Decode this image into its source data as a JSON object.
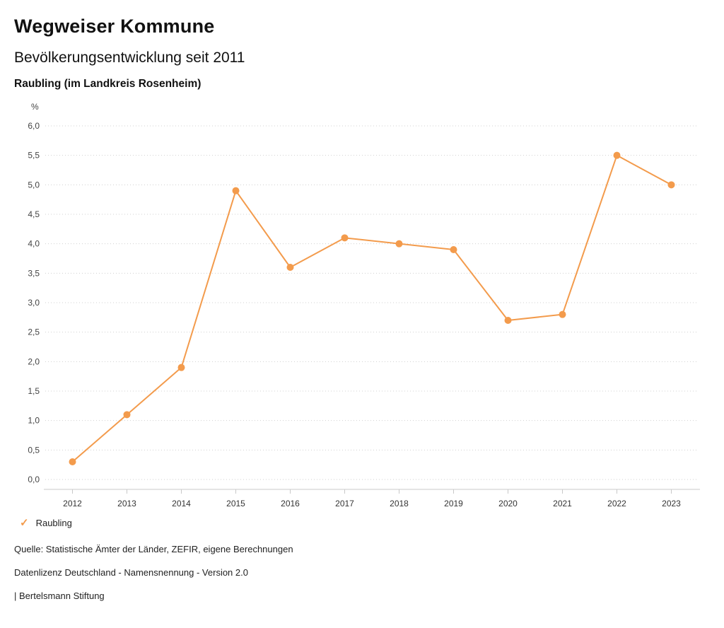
{
  "header": {
    "title": "Wegweiser Kommune",
    "subtitle": "Bevölkerungsentwicklung seit 2011",
    "region": "Raubling (im Landkreis Rosenheim)"
  },
  "legend": {
    "check_icon": "✓",
    "label": "Raubling"
  },
  "footer": {
    "source": "Quelle: Statistische Ämter der Länder, ZEFIR, eigene Berechnungen",
    "license": "Datenlizenz Deutschland - Namensnennung - Version 2.0",
    "attribution": "| Bertelsmann Stiftung"
  },
  "colors": {
    "accent": "#F39B4C",
    "grid": "#d0d0d0",
    "axis": "#c8c8c8",
    "tick_text": "#444444"
  },
  "chart_data": {
    "type": "line",
    "title": "Bevölkerungsentwicklung seit 2011",
    "subtitle": "Raubling (im Landkreis Rosenheim)",
    "categories": [
      "2012",
      "2013",
      "2014",
      "2015",
      "2016",
      "2017",
      "2018",
      "2019",
      "2020",
      "2021",
      "2022",
      "2023"
    ],
    "series": [
      {
        "name": "Raubling",
        "color": "#F39B4C",
        "values": [
          0.3,
          1.1,
          1.9,
          4.9,
          3.6,
          4.1,
          4.0,
          3.9,
          2.7,
          2.8,
          5.5,
          5.0
        ]
      }
    ],
    "xlabel": "",
    "ylabel": "%",
    "ylim": [
      0,
      6
    ],
    "ytick_step": 0.5,
    "decimal_separator": ",",
    "grid": "horizontal-dotted",
    "legend_position": "bottom-left",
    "marker": "circle"
  }
}
